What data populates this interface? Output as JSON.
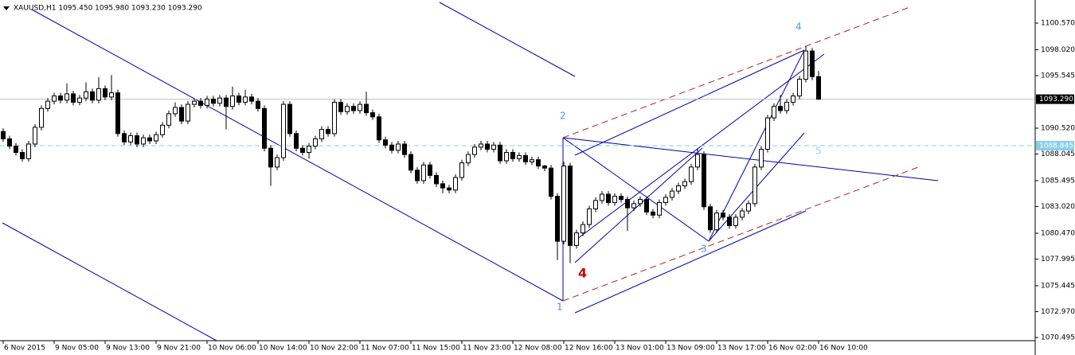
{
  "chart_data": {
    "type": "candlestick",
    "title": "XAUUSD,H1  1095.450 1095.980 1093.230 1093.290",
    "categories": [
      "6 Nov 2015",
      null,
      null,
      null,
      null,
      null,
      null,
      null,
      "9 Nov 05:00",
      null,
      null,
      null,
      null,
      null,
      null,
      null,
      "9 Nov 13:00",
      null,
      null,
      null,
      null,
      null,
      null,
      null,
      "9 Nov 21:00",
      null,
      null,
      null,
      null,
      null,
      null,
      null,
      "10 Nov 06:00",
      null,
      null,
      null,
      null,
      null,
      null,
      null,
      "10 Nov 14:00",
      null,
      null,
      null,
      null,
      null,
      null,
      null,
      "10 Nov 22:00",
      null,
      null,
      null,
      null,
      null,
      null,
      null,
      "11 Nov 07:00",
      null,
      null,
      null,
      null,
      null,
      null,
      null,
      "11 Nov 15:00",
      null,
      null,
      null,
      null,
      null,
      null,
      null,
      "11 Nov 23:00",
      null,
      null,
      null,
      null,
      null,
      null,
      null,
      "12 Nov 08:00",
      null,
      null,
      null,
      null,
      null,
      null,
      null,
      "12 Nov 16:00",
      null,
      null,
      null,
      null,
      null,
      null,
      null,
      "13 Nov 01:00",
      null,
      null,
      null,
      null,
      null,
      null,
      null,
      "13 Nov 09:00",
      null,
      null,
      null,
      null,
      null,
      null,
      null,
      "13 Nov 17:00",
      null,
      null,
      null,
      null,
      null,
      null,
      null,
      "16 Nov 02:00",
      null,
      null,
      null,
      null,
      null,
      null,
      null,
      "16 Nov 10:00"
    ],
    "open": [
      1090.2,
      1089.5,
      1088.8,
      1088.2,
      1087.6,
      1089.0,
      1090.6,
      1092.4,
      1093.1,
      1093.6,
      1093.2,
      1093.8,
      1093.0,
      1093.4,
      1094.0,
      1093.2,
      1094.3,
      1093.5,
      1093.9,
      1090.0,
      1089.2,
      1089.8,
      1089.0,
      1089.6,
      1089.3,
      1089.9,
      1090.8,
      1091.9,
      1092.5,
      1091.2,
      1092.8,
      1093.1,
      1092.7,
      1093.3,
      1092.9,
      1093.4,
      1092.6,
      1093.6,
      1093.0,
      1093.5,
      1093.1,
      1092.4,
      1088.6,
      1086.8,
      1087.7,
      1092.8,
      1090.0,
      1088.6,
      1088.2,
      1088.8,
      1089.5,
      1090.4,
      1090.0,
      1093.0,
      1092.1,
      1092.6,
      1092.2,
      1092.8,
      1092.0,
      1091.6,
      1089.4,
      1088.9,
      1088.4,
      1089.0,
      1088.0,
      1086.5,
      1085.5,
      1087.0,
      1086.0,
      1085.2,
      1084.8,
      1084.6,
      1085.8,
      1087.2,
      1088.0,
      1088.7,
      1089.0,
      1088.5,
      1088.9,
      1087.4,
      1088.2,
      1087.6,
      1087.9,
      1087.3,
      1087.5,
      1086.9,
      1086.7,
      1084.0,
      1079.7,
      1086.9,
      1079.3,
      1080.5,
      1081.3,
      1082.8,
      1083.6,
      1084.2,
      1083.4,
      1084.0,
      1083.7,
      1082.9,
      1083.3,
      1083.7,
      1082.5,
      1082.2,
      1083.4,
      1083.9,
      1084.5,
      1085.0,
      1085.4,
      1086.8,
      1088.0,
      1083.0,
      1080.8,
      1082.4,
      1082.0,
      1081.2,
      1082.0,
      1082.6,
      1083.3,
      1086.8,
      1088.5,
      1091.5,
      1092.6,
      1092.2,
      1093.0,
      1093.6,
      1095.2,
      1097.9,
      1095.45
    ],
    "high": [
      1090.5,
      1089.8,
      1089.1,
      1088.5,
      1089.3,
      1090.9,
      1092.7,
      1093.4,
      1093.9,
      1093.9,
      1094.8,
      1094.1,
      1093.7,
      1094.9,
      1094.3,
      1095.4,
      1094.6,
      1095.6,
      1094.2,
      1090.3,
      1090.1,
      1090.1,
      1089.9,
      1089.9,
      1090.2,
      1091.1,
      1092.2,
      1093.0,
      1092.8,
      1093.1,
      1093.4,
      1093.4,
      1093.6,
      1093.6,
      1093.7,
      1093.7,
      1094.5,
      1093.9,
      1094.2,
      1093.8,
      1093.4,
      1092.7,
      1088.9,
      1088.0,
      1093.1,
      1093.1,
      1090.3,
      1088.9,
      1089.1,
      1089.8,
      1090.7,
      1090.7,
      1093.3,
      1093.3,
      1092.9,
      1092.9,
      1093.1,
      1094.0,
      1092.3,
      1091.9,
      1089.7,
      1089.2,
      1089.3,
      1089.3,
      1088.3,
      1086.8,
      1087.3,
      1087.3,
      1086.3,
      1085.5,
      1085.1,
      1086.1,
      1087.5,
      1088.3,
      1089.0,
      1089.3,
      1089.3,
      1089.2,
      1089.2,
      1088.5,
      1088.5,
      1088.2,
      1088.2,
      1087.8,
      1087.8,
      1087.0,
      1087.0,
      1084.3,
      1087.3,
      1087.2,
      1080.8,
      1081.6,
      1083.1,
      1083.9,
      1084.5,
      1084.5,
      1084.3,
      1084.3,
      1084.0,
      1083.6,
      1084.0,
      1084.0,
      1082.8,
      1083.7,
      1084.2,
      1084.8,
      1085.3,
      1085.7,
      1087.1,
      1088.6,
      1088.3,
      1083.3,
      1082.7,
      1082.7,
      1082.3,
      1082.3,
      1082.9,
      1083.6,
      1087.1,
      1088.8,
      1091.8,
      1092.9,
      1093.7,
      1093.3,
      1093.9,
      1095.5,
      1098.4,
      1098.2,
      1095.98
    ],
    "low": [
      1089.2,
      1088.5,
      1087.9,
      1087.3,
      1087.3,
      1088.7,
      1090.3,
      1092.1,
      1092.8,
      1092.9,
      1092.9,
      1092.7,
      1092.7,
      1093.1,
      1092.9,
      1092.9,
      1093.2,
      1093.2,
      1089.7,
      1088.9,
      1088.9,
      1088.7,
      1088.7,
      1089.0,
      1089.0,
      1089.6,
      1090.5,
      1091.6,
      1090.9,
      1090.9,
      1092.5,
      1092.4,
      1092.4,
      1092.6,
      1092.6,
      1090.4,
      1092.3,
      1092.7,
      1092.7,
      1092.8,
      1092.1,
      1088.3,
      1085.0,
      1086.5,
      1087.4,
      1089.7,
      1088.3,
      1087.9,
      1087.6,
      1088.5,
      1089.2,
      1089.7,
      1089.7,
      1091.8,
      1091.8,
      1091.9,
      1091.9,
      1091.7,
      1091.3,
      1089.1,
      1088.6,
      1088.1,
      1088.1,
      1087.7,
      1086.2,
      1085.2,
      1085.2,
      1085.7,
      1084.9,
      1084.3,
      1084.3,
      1084.3,
      1085.5,
      1086.9,
      1087.7,
      1088.4,
      1088.2,
      1088.2,
      1087.1,
      1087.1,
      1087.3,
      1087.3,
      1087.0,
      1087.0,
      1086.6,
      1086.4,
      1083.7,
      1077.9,
      1079.4,
      1077.6,
      1079.0,
      1080.2,
      1081.0,
      1082.5,
      1083.3,
      1083.1,
      1083.1,
      1083.4,
      1080.7,
      1082.6,
      1083.0,
      1082.2,
      1081.9,
      1081.9,
      1083.1,
      1083.6,
      1084.2,
      1084.7,
      1085.1,
      1086.5,
      1082.7,
      1080.5,
      1080.5,
      1081.7,
      1080.9,
      1080.9,
      1081.7,
      1082.3,
      1083.0,
      1086.5,
      1088.2,
      1091.2,
      1091.9,
      1091.9,
      1092.7,
      1093.3,
      1094.9,
      1095.1,
      1093.23
    ],
    "close": [
      1089.5,
      1088.8,
      1088.2,
      1087.6,
      1089.0,
      1090.6,
      1092.4,
      1093.1,
      1093.6,
      1093.2,
      1093.8,
      1093.0,
      1093.4,
      1094.0,
      1093.2,
      1094.3,
      1093.5,
      1093.9,
      1090.0,
      1089.2,
      1089.8,
      1089.0,
      1089.6,
      1089.3,
      1089.9,
      1090.8,
      1091.9,
      1092.5,
      1091.2,
      1092.8,
      1093.1,
      1092.7,
      1093.3,
      1092.9,
      1093.4,
      1092.6,
      1093.6,
      1093.0,
      1093.5,
      1093.1,
      1092.4,
      1088.6,
      1086.8,
      1087.7,
      1092.8,
      1090.0,
      1088.6,
      1088.2,
      1088.8,
      1089.5,
      1090.4,
      1090.0,
      1093.0,
      1092.1,
      1092.6,
      1092.2,
      1092.8,
      1092.0,
      1091.6,
      1089.4,
      1088.9,
      1088.4,
      1089.0,
      1088.0,
      1086.5,
      1085.5,
      1087.0,
      1086.0,
      1085.2,
      1084.8,
      1084.6,
      1085.8,
      1087.2,
      1088.0,
      1088.7,
      1089.0,
      1088.5,
      1088.9,
      1087.4,
      1088.2,
      1087.6,
      1087.9,
      1087.3,
      1087.5,
      1086.9,
      1086.7,
      1084.0,
      1079.7,
      1086.9,
      1079.3,
      1080.5,
      1081.3,
      1082.8,
      1083.6,
      1084.2,
      1083.4,
      1084.0,
      1083.7,
      1082.9,
      1083.3,
      1083.7,
      1082.5,
      1082.2,
      1083.4,
      1083.9,
      1084.5,
      1085.0,
      1085.4,
      1086.8,
      1088.0,
      1083.0,
      1080.8,
      1082.4,
      1082.0,
      1081.2,
      1082.0,
      1082.6,
      1083.3,
      1086.8,
      1088.5,
      1091.5,
      1092.6,
      1092.2,
      1093.0,
      1093.6,
      1095.2,
      1097.9,
      1095.45,
      1093.29
    ],
    "ylim": [
      1070.19,
      1102.78
    ],
    "yticks": [
      {
        "value": 1100.57,
        "label": "1100.570"
      },
      {
        "value": 1098.02,
        "label": "1098.020"
      },
      {
        "value": 1095.545,
        "label": "1095.545"
      },
      {
        "value": 1090.52,
        "label": "1090.520"
      },
      {
        "value": 1088.045,
        "label": "1088.045"
      },
      {
        "value": 1085.495,
        "label": "1085.495"
      },
      {
        "value": 1083.02,
        "label": "1083.020"
      },
      {
        "value": 1080.47,
        "label": "1080.470"
      },
      {
        "value": 1077.995,
        "label": "1077.995"
      },
      {
        "value": 1075.445,
        "label": "1075.445"
      },
      {
        "value": 1072.97,
        "label": "1072.970"
      },
      {
        "value": 1070.495,
        "label": "1070.495"
      }
    ],
    "price_lines": [
      {
        "value": 1093.29,
        "label": "1093.290",
        "color": "#c0c0c0",
        "box": "#000000",
        "text": "#ffffff"
      },
      {
        "value": 1088.845,
        "label": "1088.845",
        "color": "#87ceeb",
        "box": "#87ceeb",
        "text": "#ffffff"
      }
    ],
    "bull_color": "#ffffff",
    "bear_color": "#000000",
    "annotations": [
      "1",
      "2",
      "3",
      "4",
      "4",
      "5"
    ]
  }
}
